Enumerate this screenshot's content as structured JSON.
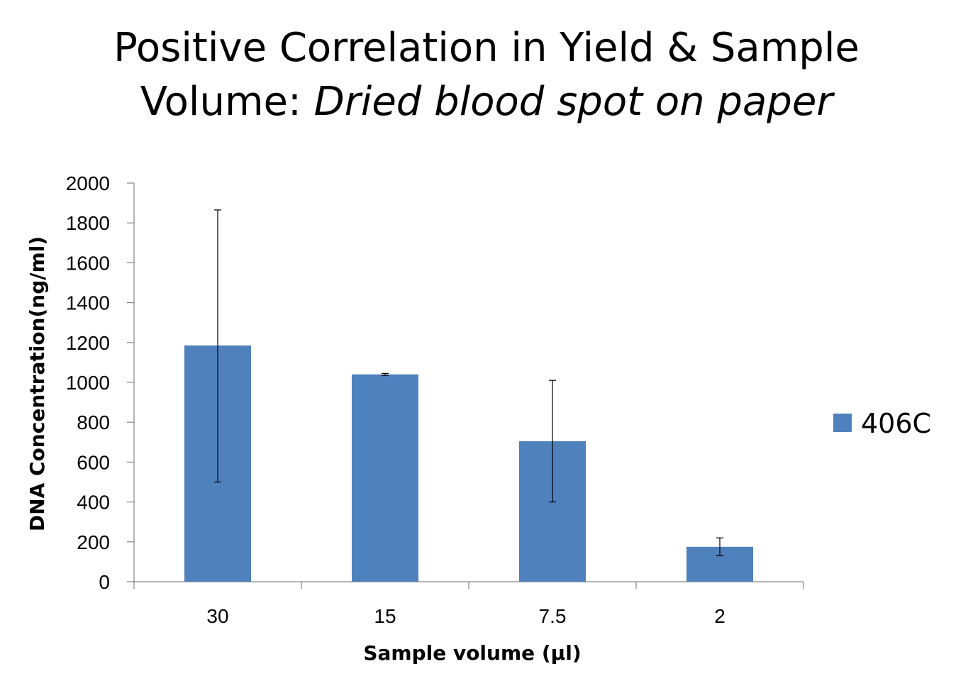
{
  "title_line1": "Positive Correlation in Yield & Sample",
  "title_line2_prefix": "Volume: ",
  "title_line2_italic": "Dried blood spot on paper",
  "chart_data": {
    "type": "bar",
    "categories": [
      "30",
      "15",
      "7.5",
      "2"
    ],
    "series": [
      {
        "name": "406C",
        "values": [
          1185,
          1040,
          705,
          175
        ],
        "error_low": [
          500,
          1035,
          400,
          130
        ],
        "error_high": [
          1865,
          1045,
          1010,
          220
        ],
        "color": "#4F81BD"
      }
    ],
    "title": "Positive Correlation in Yield & Sample Volume: Dried blood spot on paper",
    "xlabel": "Sample volume (µl)",
    "ylabel": "DNA Concentration(ng/ml)",
    "ylim": [
      0,
      2000
    ],
    "yticks": [
      0,
      200,
      400,
      600,
      800,
      1000,
      1200,
      1400,
      1600,
      1800,
      2000
    ],
    "grid": false,
    "legend_position": "right",
    "error_bars": true
  }
}
